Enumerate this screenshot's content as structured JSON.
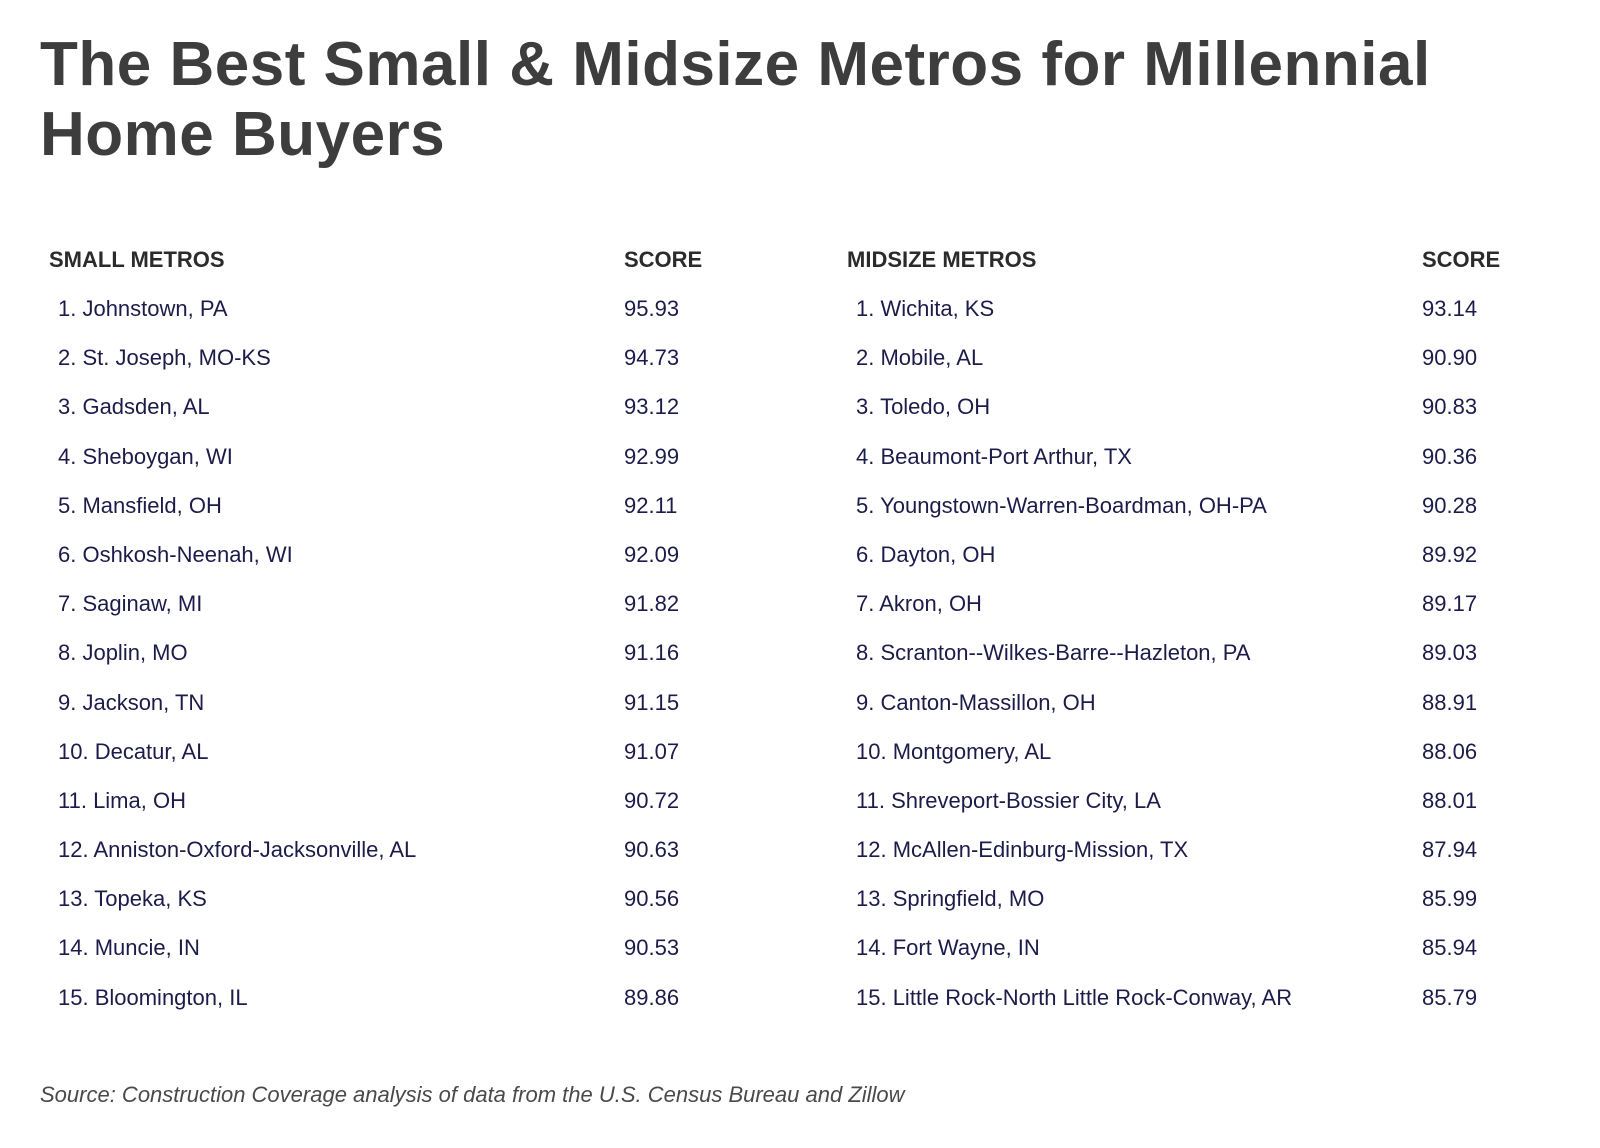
{
  "title": "The Best Small & Midsize Metros for Millennial Home Buyers",
  "source": "Source: Construction Coverage analysis of data from the U.S. Census Bureau and Zillow",
  "chart_data": {
    "type": "table",
    "title": "The Best Small & Midsize Metros for Millennial Home Buyers",
    "tables": [
      {
        "headers": [
          "SMALL METROS",
          "SCORE"
        ],
        "rows": [
          {
            "name": "1. Johnstown, PA",
            "score": "95.93"
          },
          {
            "name": "2. St. Joseph, MO-KS",
            "score": "94.73"
          },
          {
            "name": "3. Gadsden, AL",
            "score": "93.12"
          },
          {
            "name": "4. Sheboygan, WI",
            "score": "92.99"
          },
          {
            "name": "5. Mansfield, OH",
            "score": "92.11"
          },
          {
            "name": "6. Oshkosh-Neenah, WI",
            "score": "92.09"
          },
          {
            "name": "7. Saginaw, MI",
            "score": "91.82"
          },
          {
            "name": "8. Joplin, MO",
            "score": "91.16"
          },
          {
            "name": "9. Jackson, TN",
            "score": "91.15"
          },
          {
            "name": "10. Decatur, AL",
            "score": "91.07"
          },
          {
            "name": "11. Lima, OH",
            "score": "90.72"
          },
          {
            "name": "12. Anniston-Oxford-Jacksonville, AL",
            "score": "90.63"
          },
          {
            "name": "13. Topeka, KS",
            "score": "90.56"
          },
          {
            "name": "14. Muncie, IN",
            "score": "90.53"
          },
          {
            "name": "15. Bloomington, IL",
            "score": "89.86"
          }
        ]
      },
      {
        "headers": [
          "MIDSIZE METROS",
          "SCORE"
        ],
        "rows": [
          {
            "name": "1. Wichita, KS",
            "score": "93.14"
          },
          {
            "name": "2. Mobile, AL",
            "score": "90.90"
          },
          {
            "name": "3. Toledo, OH",
            "score": "90.83"
          },
          {
            "name": "4. Beaumont-Port Arthur, TX",
            "score": "90.36"
          },
          {
            "name": "5. Youngstown-Warren-Boardman, OH-PA",
            "score": "90.28"
          },
          {
            "name": "6. Dayton, OH",
            "score": "89.92"
          },
          {
            "name": "7. Akron, OH",
            "score": "89.17"
          },
          {
            "name": "8. Scranton--Wilkes-Barre--Hazleton, PA",
            "score": "89.03"
          },
          {
            "name": "9. Canton-Massillon, OH",
            "score": "88.91"
          },
          {
            "name": "10. Montgomery, AL",
            "score": "88.06"
          },
          {
            "name": "11. Shreveport-Bossier City, LA",
            "score": "88.01"
          },
          {
            "name": "12. McAllen-Edinburg-Mission, TX",
            "score": "87.94"
          },
          {
            "name": "13. Springfield, MO",
            "score": "85.99"
          },
          {
            "name": "14. Fort Wayne, IN",
            "score": "85.94"
          },
          {
            "name": "15. Little Rock-North Little Rock-Conway, AR",
            "score": "85.79"
          }
        ]
      }
    ]
  }
}
